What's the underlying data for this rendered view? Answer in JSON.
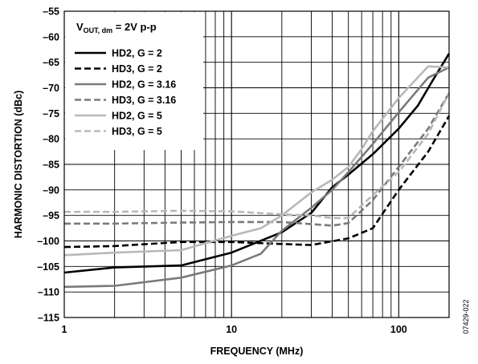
{
  "chart_data": {
    "type": "line",
    "xscale": "log",
    "xlim": [
      1,
      200
    ],
    "ylim": [
      -115,
      -55
    ],
    "grid": true,
    "legend_position": "top-left",
    "xlabel": "FREQUENCY (MHz)",
    "ylabel": "HARMONIC DISTORTION (dBc)",
    "x_tick_labels": [
      {
        "value": 1,
        "label": "1"
      },
      {
        "value": 10,
        "label": "10"
      },
      {
        "value": 100,
        "label": "100"
      }
    ],
    "y_tick_labels": [
      {
        "value": -55,
        "label": "–55"
      },
      {
        "value": -60,
        "label": "–60"
      },
      {
        "value": -65,
        "label": "–65"
      },
      {
        "value": -70,
        "label": "–70"
      },
      {
        "value": -75,
        "label": "–75"
      },
      {
        "value": -80,
        "label": "–80"
      },
      {
        "value": -85,
        "label": "–85"
      },
      {
        "value": -90,
        "label": "–90"
      },
      {
        "value": -95,
        "label": "–95"
      },
      {
        "value": -100,
        "label": "–100"
      },
      {
        "value": -105,
        "label": "–105"
      },
      {
        "value": -110,
        "label": "–110"
      },
      {
        "value": -115,
        "label": "–115"
      }
    ],
    "annotation": {
      "main": "V",
      "subscript": "OUT, dm",
      "rest": " = 2V p-p"
    },
    "series": [
      {
        "name": "HD2, G = 2",
        "color": "#000000",
        "dashed": false,
        "points": [
          [
            1,
            -106.2
          ],
          [
            2,
            -105.2
          ],
          [
            5,
            -104.8
          ],
          [
            10,
            -102.3
          ],
          [
            20,
            -98.3
          ],
          [
            30,
            -94.5
          ],
          [
            40,
            -89.5
          ],
          [
            50,
            -87.0
          ],
          [
            70,
            -83.0
          ],
          [
            100,
            -78.0
          ],
          [
            130,
            -73.5
          ],
          [
            160,
            -68.5
          ],
          [
            200,
            -63.3
          ]
        ]
      },
      {
        "name": "HD3, G = 2",
        "color": "#000000",
        "dashed": true,
        "points": [
          [
            1,
            -101.2
          ],
          [
            2,
            -101.0
          ],
          [
            5,
            -100.2
          ],
          [
            10,
            -100.2
          ],
          [
            20,
            -100.6
          ],
          [
            30,
            -100.8
          ],
          [
            50,
            -99.5
          ],
          [
            70,
            -97.5
          ],
          [
            100,
            -90.0
          ],
          [
            150,
            -82.5
          ],
          [
            200,
            -75.5
          ]
        ]
      },
      {
        "name": "HD2, G = 3.16",
        "color": "#7a7a7a",
        "dashed": false,
        "points": [
          [
            1,
            -109.0
          ],
          [
            2,
            -108.8
          ],
          [
            5,
            -107.2
          ],
          [
            10,
            -104.8
          ],
          [
            15,
            -102.5
          ],
          [
            20,
            -98.0
          ],
          [
            30,
            -93.5
          ],
          [
            40,
            -90.0
          ],
          [
            50,
            -86.5
          ],
          [
            70,
            -81.0
          ],
          [
            100,
            -74.8
          ],
          [
            150,
            -68.0
          ],
          [
            200,
            -66.0
          ]
        ]
      },
      {
        "name": "HD3, G = 3.16",
        "color": "#7a7a7a",
        "dashed": true,
        "points": [
          [
            1,
            -96.6
          ],
          [
            2,
            -96.6
          ],
          [
            5,
            -96.4
          ],
          [
            10,
            -96.3
          ],
          [
            20,
            -96.3
          ],
          [
            40,
            -97.0
          ],
          [
            50,
            -96.5
          ],
          [
            70,
            -92.0
          ],
          [
            100,
            -85.5
          ],
          [
            150,
            -78.0
          ],
          [
            200,
            -71.0
          ]
        ]
      },
      {
        "name": "HD2, G = 5",
        "color": "#b8b8b8",
        "dashed": false,
        "points": [
          [
            1,
            -102.8
          ],
          [
            2,
            -102.3
          ],
          [
            5,
            -101.8
          ],
          [
            10,
            -99.0
          ],
          [
            15,
            -97.5
          ],
          [
            20,
            -95.0
          ],
          [
            30,
            -90.5
          ],
          [
            40,
            -88.0
          ],
          [
            50,
            -85.5
          ],
          [
            60,
            -82.0
          ],
          [
            70,
            -78.5
          ],
          [
            100,
            -72.0
          ],
          [
            150,
            -65.8
          ],
          [
            200,
            -66.0
          ]
        ]
      },
      {
        "name": "HD3, G = 5",
        "color": "#b8b8b8",
        "dashed": true,
        "points": [
          [
            1,
            -94.3
          ],
          [
            2,
            -94.3
          ],
          [
            5,
            -94.1
          ],
          [
            10,
            -94.2
          ],
          [
            20,
            -94.8
          ],
          [
            30,
            -95.0
          ],
          [
            40,
            -95.5
          ],
          [
            50,
            -95.5
          ],
          [
            70,
            -91.0
          ],
          [
            100,
            -86.5
          ],
          [
            150,
            -79.0
          ],
          [
            200,
            -71.0
          ]
        ]
      }
    ]
  },
  "figure_id": "07429-022"
}
